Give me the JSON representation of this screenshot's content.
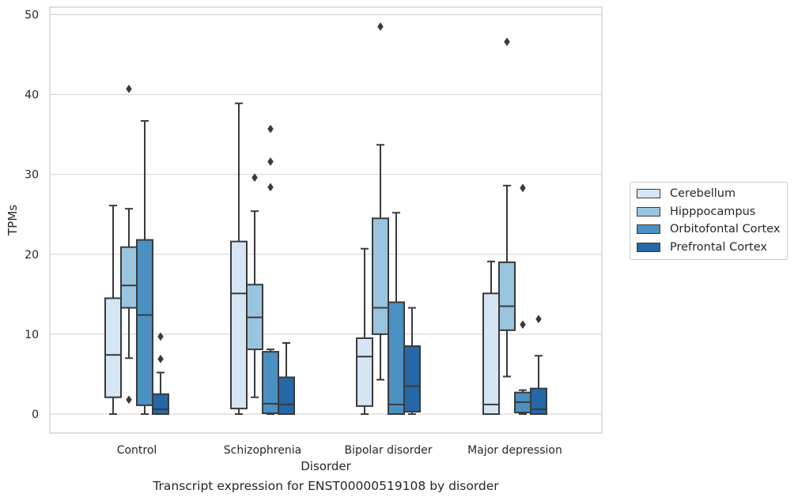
{
  "caption": "Transcript expression for ENST00000519108 by disorder",
  "colors": {
    "Cerebellum": "#d6e5f3",
    "Hipppocampus": "#9ac5df",
    "Orbitofontal Cortex": "#4b90c3",
    "Prefrontal Cortex": "#2667a8",
    "edge": "#3a3a3a",
    "grid": "#cfcfcf"
  },
  "chart_data": {
    "type": "box",
    "xlabel": "Disorder",
    "ylabel": "TPMs",
    "ylim": [
      -2.3,
      51
    ],
    "yticks": [
      0,
      10,
      20,
      30,
      40,
      50
    ],
    "grid": "horizontal",
    "legend_position": "right",
    "categories": [
      "Control",
      "Schizophrenia",
      "Bipolar disorder",
      "Major depression"
    ],
    "series": [
      {
        "name": "Cerebellum",
        "boxes": [
          {
            "min": 0,
            "q1": 2.1,
            "median": 7.4,
            "q3": 14.5,
            "max": 26.1,
            "outliers": []
          },
          {
            "min": 0,
            "q1": 0.7,
            "median": 15.1,
            "q3": 21.6,
            "max": 38.9,
            "outliers": []
          },
          {
            "min": 0,
            "q1": 1.0,
            "median": 7.2,
            "q3": 9.5,
            "max": 20.7,
            "outliers": []
          },
          {
            "min": 0,
            "q1": 0,
            "median": 1.2,
            "q3": 15.1,
            "max": 19.1,
            "outliers": []
          }
        ]
      },
      {
        "name": "Hipppocampus",
        "boxes": [
          {
            "min": 7.0,
            "q1": 13.3,
            "median": 16.1,
            "q3": 20.9,
            "max": 25.7,
            "outliers": [
              40.7,
              1.8
            ]
          },
          {
            "min": 2.1,
            "q1": 8.1,
            "median": 12.1,
            "q3": 16.2,
            "max": 25.4,
            "outliers": [
              29.6
            ]
          },
          {
            "min": 4.3,
            "q1": 10.0,
            "median": 13.3,
            "q3": 24.5,
            "max": 33.7,
            "outliers": [
              48.5
            ]
          },
          {
            "min": 4.7,
            "q1": 10.5,
            "median": 13.5,
            "q3": 19.0,
            "max": 28.6,
            "outliers": [
              46.6
            ]
          }
        ]
      },
      {
        "name": "Orbitofontal Cortex",
        "boxes": [
          {
            "min": 0,
            "q1": 1.1,
            "median": 12.4,
            "q3": 21.8,
            "max": 36.7,
            "outliers": []
          },
          {
            "min": 0,
            "q1": 0.1,
            "median": 1.3,
            "q3": 7.8,
            "max": 8.1,
            "outliers": [
              35.7,
              31.6,
              28.4
            ]
          },
          {
            "min": 0,
            "q1": 0,
            "median": 1.2,
            "q3": 14.0,
            "max": 25.2,
            "outliers": []
          },
          {
            "min": 0,
            "q1": 0.2,
            "median": 1.5,
            "q3": 2.7,
            "max": 3.0,
            "outliers": [
              28.3,
              11.2
            ]
          }
        ]
      },
      {
        "name": "Prefrontal Cortex",
        "boxes": [
          {
            "min": 0,
            "q1": 0,
            "median": 0.6,
            "q3": 2.5,
            "max": 5.2,
            "outliers": [
              9.7,
              6.9
            ]
          },
          {
            "min": 0,
            "q1": 0,
            "median": 1.2,
            "q3": 4.6,
            "max": 8.9,
            "outliers": []
          },
          {
            "min": 0,
            "q1": 0.3,
            "median": 3.5,
            "q3": 8.5,
            "max": 13.3,
            "outliers": []
          },
          {
            "min": 0,
            "q1": 0,
            "median": 0.6,
            "q3": 3.2,
            "max": 7.3,
            "outliers": [
              11.9
            ]
          }
        ]
      }
    ]
  }
}
